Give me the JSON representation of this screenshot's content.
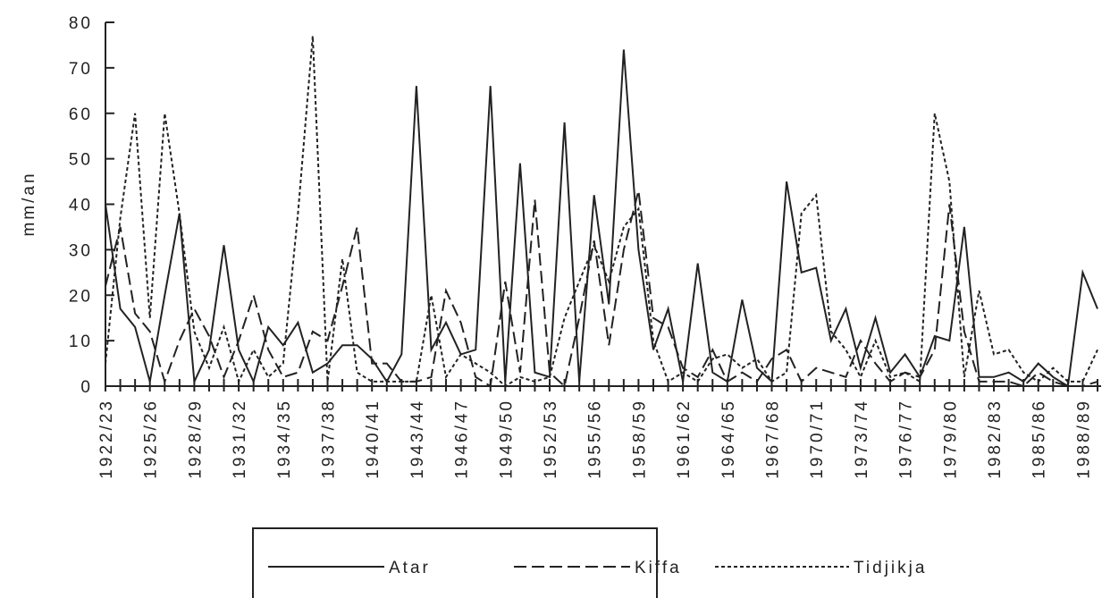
{
  "chart_data": {
    "type": "line",
    "ylabel": "mm/an",
    "categories": [
      "1922/23",
      null,
      null,
      "1925/26",
      null,
      null,
      "1928/29",
      null,
      null,
      "1931/32",
      null,
      null,
      "1934/35",
      null,
      null,
      "1937/38",
      null,
      null,
      "1940/41",
      null,
      null,
      "1943/44",
      null,
      null,
      "1946/47",
      null,
      null,
      "1949/50",
      null,
      null,
      "1952/53",
      null,
      null,
      "1955/56",
      null,
      null,
      "1958/59",
      null,
      null,
      "1961/62",
      null,
      null,
      "1964/65",
      null,
      null,
      "1967/68",
      null,
      null,
      "1970/71",
      null,
      null,
      "1973/74",
      null,
      null,
      "1976/77",
      null,
      null,
      "1979/80",
      null,
      null,
      "1982/83",
      null,
      null,
      "1985/86",
      null,
      null,
      "1988/89",
      null
    ],
    "series": [
      {
        "name": "Atar",
        "color": "#222222",
        "dash": "solid",
        "values": [
          40,
          17,
          13,
          1,
          20,
          38,
          1,
          8,
          31,
          8,
          1,
          13,
          9,
          14,
          3,
          5,
          9,
          9,
          6,
          1,
          7,
          66,
          8,
          14,
          7,
          8,
          66,
          1,
          49,
          3,
          2,
          58,
          1,
          42,
          18,
          74,
          30,
          8,
          17,
          1,
          27,
          3,
          1,
          19,
          4,
          1,
          45,
          25,
          26,
          10,
          17,
          4,
          15,
          3,
          7,
          2,
          11,
          10,
          35,
          2,
          2,
          3,
          1,
          5,
          2,
          0,
          25,
          17
        ]
      },
      {
        "name": "Kiffa",
        "color": "#222222",
        "dash": "dashed",
        "values": [
          22,
          35,
          16,
          12,
          1,
          10,
          17,
          11,
          2,
          10,
          20,
          8,
          2,
          3,
          12,
          10,
          22,
          35,
          5,
          5,
          1,
          1,
          2,
          21,
          14,
          2,
          0,
          23,
          3,
          41,
          3,
          0,
          15,
          32,
          9,
          30,
          43,
          15,
          13,
          4,
          2,
          8,
          1,
          3,
          1,
          6,
          8,
          1,
          4,
          3,
          2,
          10,
          5,
          1,
          3,
          2,
          8,
          40,
          12,
          1,
          1,
          1,
          0,
          3,
          1,
          0,
          0,
          1
        ]
      },
      {
        "name": "Tidjikja",
        "color": "#222222",
        "dash": "dotted",
        "values": [
          5,
          37,
          60,
          15,
          60,
          38,
          12,
          4,
          13,
          1,
          8,
          2,
          5,
          38,
          77,
          1,
          28,
          3,
          1,
          1,
          1,
          1,
          20,
          2,
          7,
          5,
          3,
          0,
          2,
          1,
          2,
          15,
          23,
          31,
          23,
          35,
          39,
          10,
          1,
          3,
          1,
          6,
          7,
          4,
          6,
          1,
          3,
          38,
          42,
          12,
          8,
          2,
          10,
          2,
          3,
          1,
          60,
          45,
          2,
          21,
          7,
          8,
          3,
          1,
          4,
          1,
          1,
          8
        ]
      }
    ],
    "ylim": [
      0,
      80
    ],
    "yticks": [
      0,
      10,
      20,
      30,
      40,
      50,
      60,
      70,
      80
    ],
    "legend": "bottom"
  }
}
